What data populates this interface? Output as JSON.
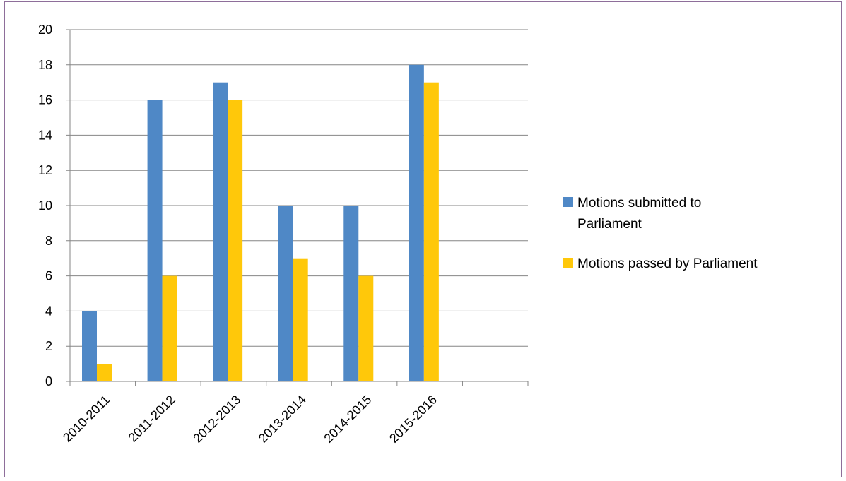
{
  "chart_data": {
    "type": "bar",
    "categories": [
      "2010-2011",
      "2011-2012",
      "2012-2013",
      "2013-2014",
      "2014-2015",
      "2015-2016",
      ""
    ],
    "series": [
      {
        "name": "Motions submitted to Parliament",
        "name_lines": [
          "Motions submitted to",
          "Parliament"
        ],
        "color": "#4f88c6",
        "values": [
          4,
          16,
          17,
          10,
          10,
          18,
          null
        ]
      },
      {
        "name": "Motions passed by Parliament",
        "name_lines": [
          "Motions passed by Parliament"
        ],
        "color": "#ffc80a",
        "values": [
          1,
          6,
          16,
          7,
          6,
          17,
          null
        ]
      }
    ],
    "title": "",
    "xlabel": "",
    "ylabel": "",
    "ylim": [
      0,
      20
    ],
    "yticks": [
      0,
      2,
      4,
      6,
      8,
      10,
      12,
      14,
      16,
      18,
      20
    ],
    "grid": true,
    "legend_position": "right"
  },
  "colors": {
    "border": "#8e6e9a",
    "gridline": "#868686",
    "axis": "#868686"
  }
}
